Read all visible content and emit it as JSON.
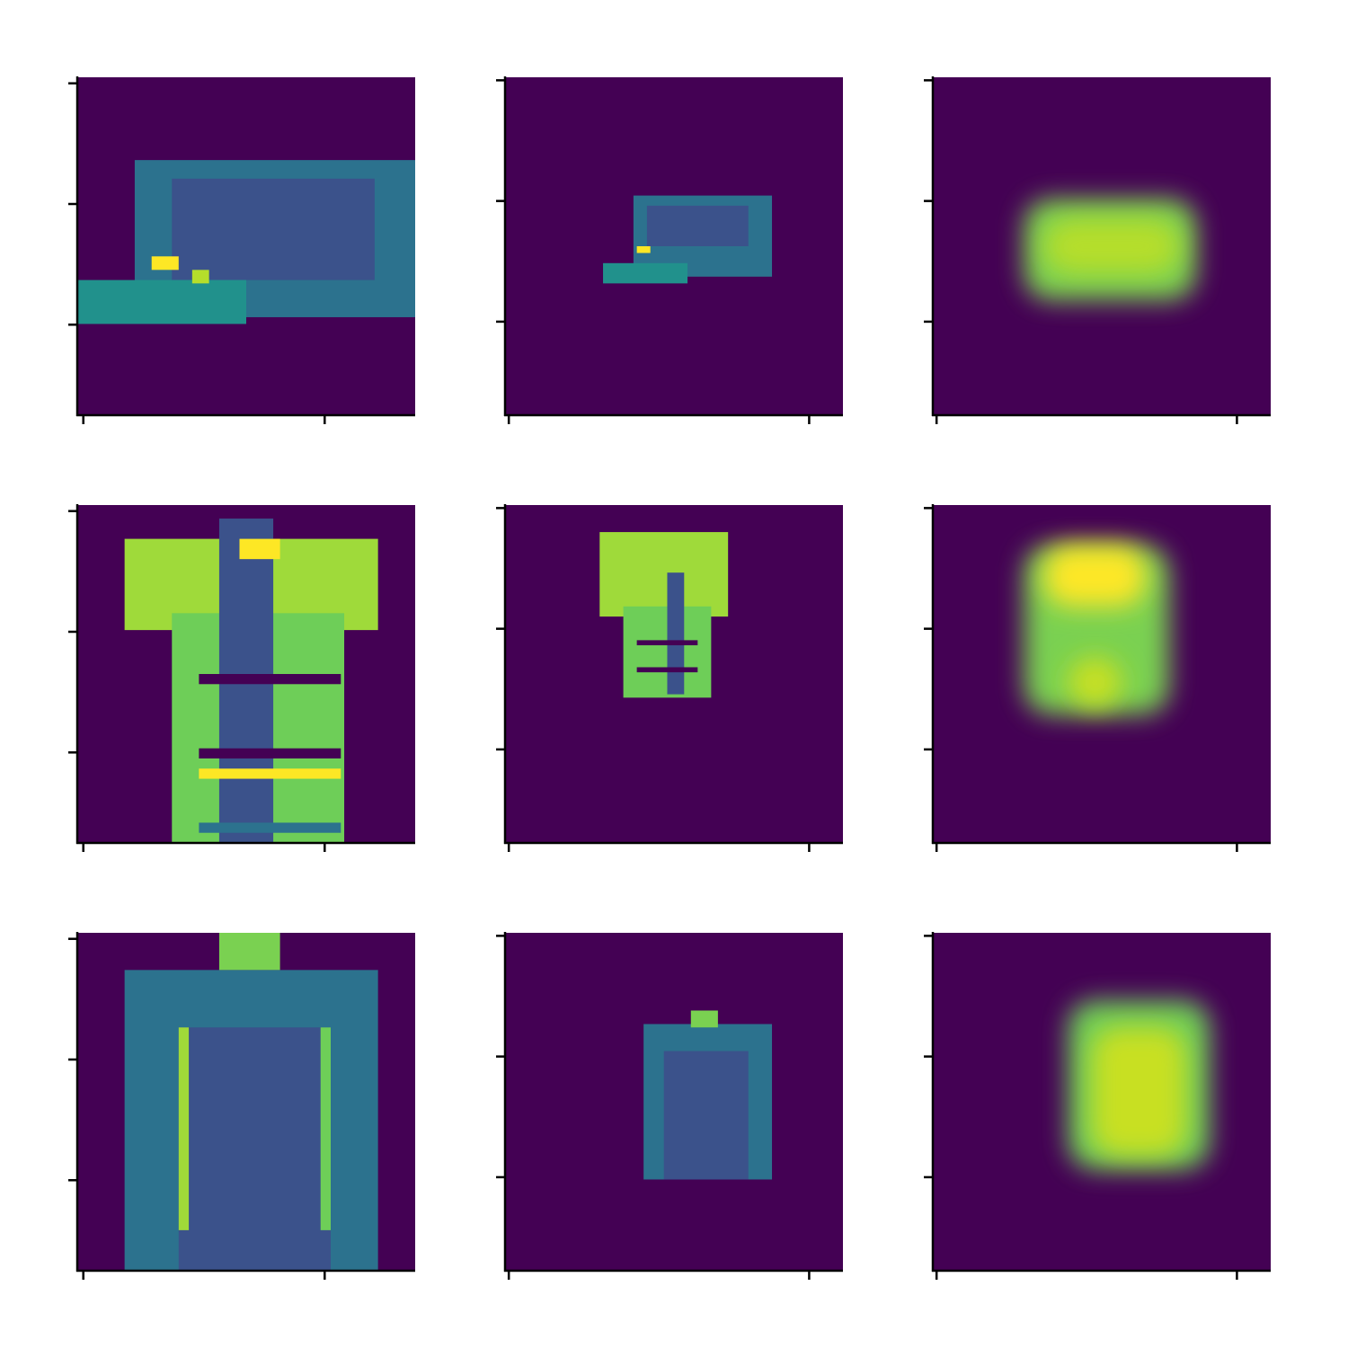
{
  "chart_data": [
    {
      "type": "image",
      "background": "#440154",
      "xlim": [
        -0.5,
        27.5
      ],
      "xticks": [
        0,
        20
      ],
      "ylim": [
        27.5,
        -0.5
      ],
      "yticks": [
        0,
        10,
        20
      ]
    },
    {
      "type": "image",
      "background": "#440154",
      "xlim": [
        -0.5,
        44.5
      ],
      "xticks": [
        0,
        40
      ],
      "ylim": [
        55.5,
        -0.5
      ],
      "yticks": [
        0,
        20,
        40
      ]
    },
    {
      "type": "image",
      "background": "#440154",
      "xlim": [
        -0.5,
        44.5
      ],
      "xticks": [
        0,
        40
      ],
      "ylim": [
        55.5,
        -0.5
      ],
      "yticks": [
        0,
        20,
        40
      ]
    },
    {
      "type": "image",
      "background": "#440154",
      "xlim": [
        -0.5,
        27.5
      ],
      "xticks": [
        0,
        20
      ],
      "ylim": [
        27.5,
        -0.5
      ],
      "yticks": [
        0,
        10,
        20
      ]
    },
    {
      "type": "image",
      "background": "#440154",
      "xlim": [
        -0.5,
        44.5
      ],
      "xticks": [
        0,
        40
      ],
      "ylim": [
        55.5,
        -0.5
      ],
      "yticks": [
        0,
        20,
        40
      ]
    },
    {
      "type": "image",
      "background": "#440154",
      "xlim": [
        -0.5,
        44.5
      ],
      "xticks": [
        0,
        40
      ],
      "ylim": [
        55.5,
        -0.5
      ],
      "yticks": [
        0,
        20,
        40
      ]
    },
    {
      "type": "image",
      "background": "#440154",
      "xlim": [
        -0.5,
        27.5
      ],
      "xticks": [
        0,
        20
      ],
      "ylim": [
        27.5,
        -0.5
      ],
      "yticks": [
        0,
        10,
        20
      ]
    },
    {
      "type": "image",
      "background": "#440154",
      "xlim": [
        -0.5,
        44.5
      ],
      "xticks": [
        0,
        40
      ],
      "ylim": [
        55.5,
        -0.5
      ],
      "yticks": [
        0,
        20,
        40
      ]
    },
    {
      "type": "image",
      "background": "#440154",
      "xlim": [
        -0.5,
        44.5
      ],
      "xticks": [
        0,
        40
      ],
      "ylim": [
        55.5,
        -0.5
      ],
      "yticks": [
        0,
        20,
        40
      ]
    }
  ]
}
